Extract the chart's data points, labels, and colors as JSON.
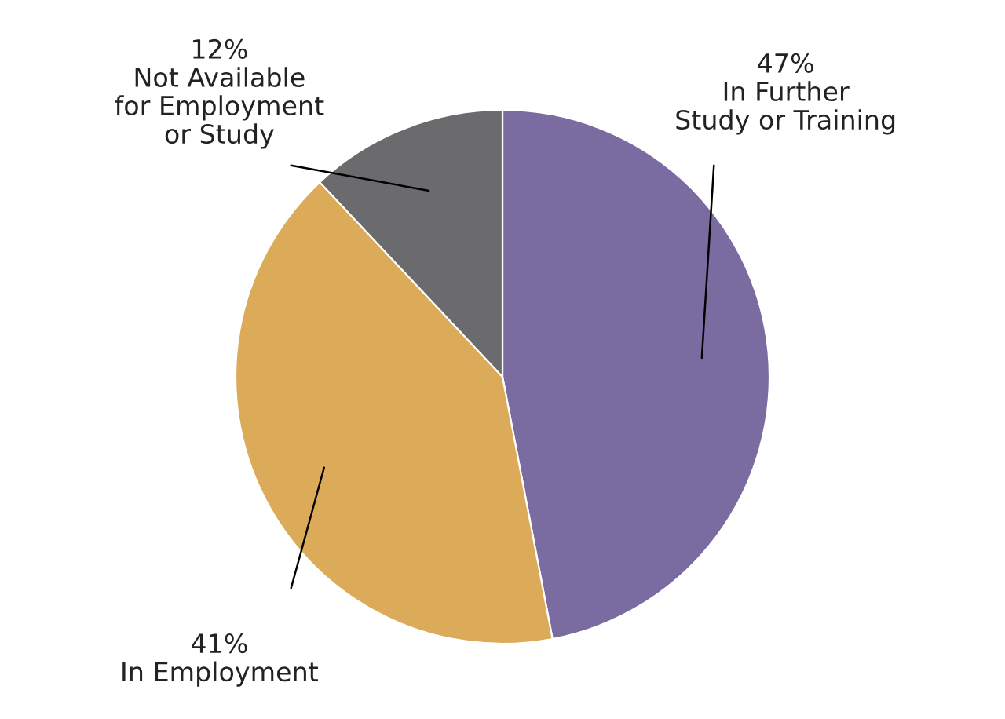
{
  "chart_data": {
    "type": "pie",
    "categories": [
      "In Further\nStudy or Training",
      "In Employment",
      "Not Available\nfor Employment\nor Study"
    ],
    "values": [
      47,
      41,
      12
    ],
    "value_labels": [
      "47%",
      "41%",
      "12%"
    ],
    "colors": [
      "#7a6ba0",
      "#dcab5a",
      "#6b6b6d"
    ]
  }
}
